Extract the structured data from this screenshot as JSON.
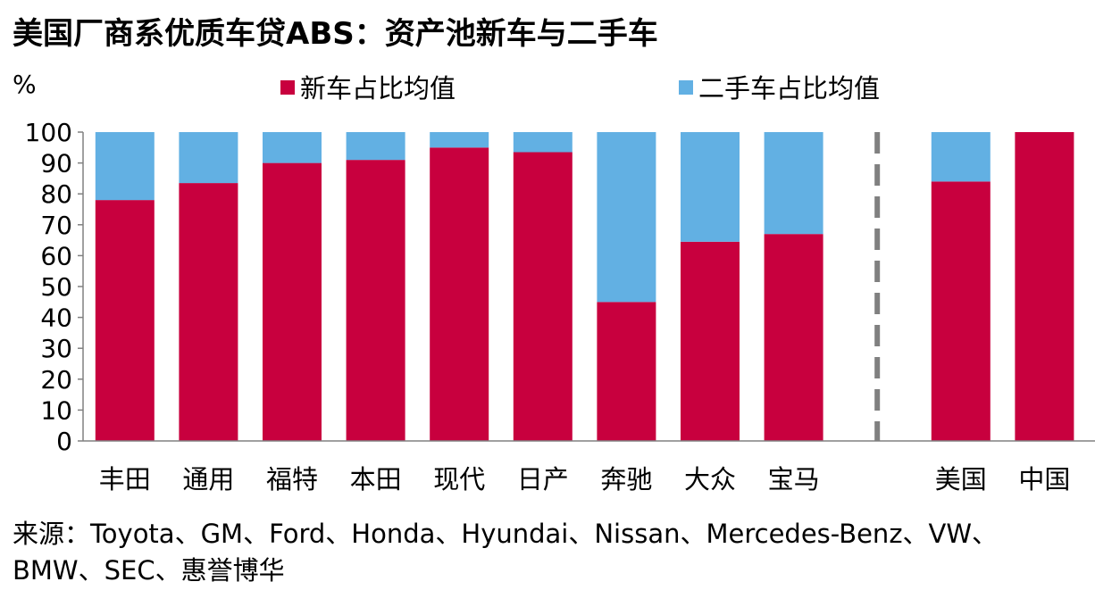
{
  "title": "美国厂商系优质车贷ABS：资产池新车与二手车",
  "source": "来源：Toyota、GM、Ford、Honda、Hyundai、Nissan、Mercedes-Benz、VW、BMW、SEC、惠誉博华",
  "chart_data": {
    "type": "bar",
    "stacked": true,
    "unit_label": "%",
    "categories": [
      "丰田",
      "通用",
      "福特",
      "本田",
      "现代",
      "日产",
      "奔驰",
      "大众",
      "宝马",
      "美国",
      "中国"
    ],
    "series": [
      {
        "name": "新车占比均值",
        "color": "#C8003E",
        "values": [
          78,
          83.5,
          90,
          91,
          95,
          93.5,
          45,
          64.5,
          67,
          84,
          100
        ]
      },
      {
        "name": "二手车占比均值",
        "color": "#62B0E3",
        "values": [
          22,
          16.5,
          10,
          9,
          5,
          6.5,
          55,
          35.5,
          33,
          16,
          0
        ]
      }
    ],
    "ylim": [
      0,
      100
    ],
    "yticks": [
      "0",
      "10",
      "20",
      "30",
      "40",
      "50",
      "60",
      "70",
      "80",
      "90",
      "100"
    ],
    "separator_after_index": 8,
    "separator_style": "dashed grey vertical line",
    "legend_position": "top",
    "grid": false
  }
}
